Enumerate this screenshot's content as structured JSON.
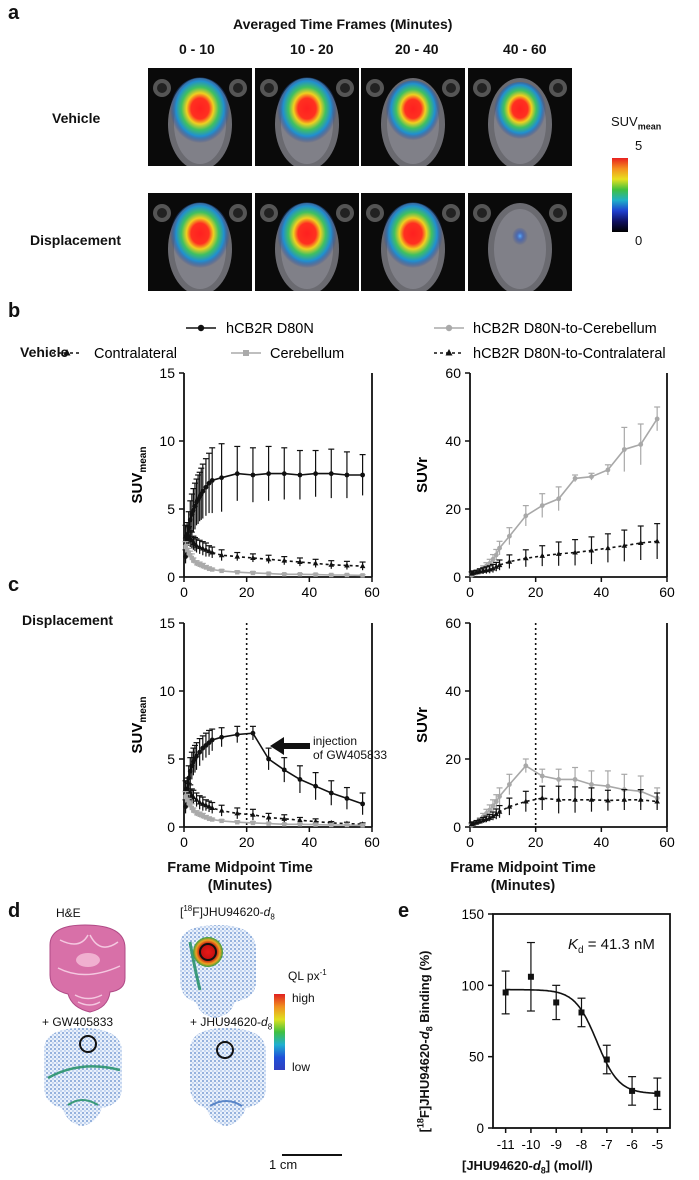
{
  "panel_a": {
    "letter": "a",
    "header": "Averaged Time Frames (Minutes)",
    "frames": [
      "0 - 10",
      "10 - 20",
      "20 - 40",
      "40 - 60"
    ],
    "rows": [
      "Vehicle",
      "Displacement"
    ],
    "colorbar": {
      "title": "SUV",
      "title_sub": "mean",
      "max": "5",
      "min": "0"
    },
    "hot_intensity": {
      "Vehicle": [
        1.0,
        1.0,
        0.9,
        0.85
      ],
      "Displacement": [
        1.0,
        1.0,
        1.0,
        0.15
      ]
    }
  },
  "panel_b": {
    "letter": "b",
    "row_label": "Vehicle"
  },
  "panel_c": {
    "letter": "c",
    "row_label": "Displacement",
    "annotation_line1": "injection",
    "annotation_line2": "of GW405833"
  },
  "legend": {
    "hcb2r": "hCB2R D80N",
    "contralateral": "Contralateral",
    "cerebellum": "Cerebellum",
    "ratio_cerebellum": "hCB2R D80N-to-Cerebellum",
    "ratio_contralateral": "hCB2R D80N-to-Contralateral"
  },
  "axes_bc": {
    "xlabel_line1": "Frame Midpoint Time",
    "xlabel_line2": "(Minutes)",
    "ylabel_suv": "SUV",
    "ylabel_suv_sub": "mean",
    "ylabel_suvr": "SUVr",
    "x_ticks": [
      "0",
      "20",
      "40",
      "60"
    ],
    "y_ticks_suv": [
      "0",
      "5",
      "10",
      "15"
    ],
    "y_ticks_suvr": [
      "0",
      "20",
      "40",
      "60"
    ]
  },
  "panel_d": {
    "letter": "d",
    "he_label": "H&E",
    "tracer_label": "[",
    "tracer_sup": "18",
    "tracer_rest": "F]JHU94620-",
    "tracer_d": "d",
    "tracer_d_sub": "8",
    "gw_label": "+ GW405833",
    "jhu_label": "+ JHU94620-",
    "jhu_d": "d",
    "jhu_d_sub": "8",
    "ql_label": "QL px",
    "ql_sup": "-1",
    "high": "high",
    "low": "low",
    "scale": "1 cm"
  },
  "panel_e": {
    "letter": "e",
    "kd": "K",
    "kd_sub": "d",
    "kd_value": " = 41.3 nM",
    "ylabel_pre": "[",
    "ylabel_sup": "18",
    "ylabel_mid": "F]JHU94620-",
    "ylabel_d": "d",
    "ylabel_d_sub": "8",
    "ylabel_post": " Binding (%)",
    "xlabel_pre": "[JHU94620-",
    "xlabel_d": "d",
    "xlabel_d_sub": "8",
    "xlabel_post": "] (mol/l)",
    "x_ticks": [
      "-11",
      "-10",
      "-9",
      "-8",
      "-7",
      "-6",
      "-5"
    ],
    "y_ticks": [
      "0",
      "50",
      "100",
      "150"
    ]
  },
  "chart_data": [
    {
      "id": "b-left",
      "type": "line",
      "xlim": [
        0,
        60
      ],
      "ylim": [
        0,
        15
      ],
      "series": [
        {
          "name": "hCB2R D80N",
          "color": "#111111",
          "dash": "",
          "marker": "circle",
          "x": [
            0.5,
            1,
            1.5,
            2,
            2.5,
            3,
            3.5,
            4,
            4.5,
            5,
            5.5,
            6,
            7,
            8,
            9,
            12,
            17,
            22,
            27,
            32,
            37,
            42,
            47,
            52,
            57
          ],
          "y": [
            1.5,
            2.8,
            3.6,
            4.2,
            4.6,
            4.9,
            5.2,
            5.5,
            5.7,
            5.9,
            6.1,
            6.3,
            6.6,
            6.9,
            7.1,
            7.3,
            7.6,
            7.5,
            7.6,
            7.6,
            7.5,
            7.6,
            7.6,
            7.5,
            7.5
          ],
          "err": [
            0.5,
            1.0,
            1.2,
            1.4,
            1.5,
            1.6,
            1.7,
            1.7,
            1.8,
            1.8,
            1.9,
            2.0,
            2.1,
            2.2,
            2.4,
            2.5,
            2.0,
            2.0,
            2.0,
            1.9,
            1.8,
            1.7,
            1.8,
            1.7,
            1.5
          ]
        },
        {
          "x": [
            0.5,
            1,
            1.5,
            2,
            2.5,
            3,
            3.5,
            4,
            5,
            6,
            7,
            8,
            9,
            12,
            17,
            22,
            27,
            32,
            37,
            42,
            47,
            52,
            57
          ],
          "y": [
            3.0,
            3.2,
            3.0,
            2.8,
            2.7,
            2.5,
            2.4,
            2.3,
            2.2,
            2.1,
            2.0,
            1.9,
            1.8,
            1.6,
            1.5,
            1.4,
            1.3,
            1.2,
            1.1,
            1.0,
            0.9,
            0.85,
            0.8
          ],
          "err": [
            0.8,
            0.8,
            0.7,
            0.6,
            0.6,
            0.5,
            0.5,
            0.5,
            0.5,
            0.5,
            0.5,
            0.4,
            0.4,
            0.4,
            0.3,
            0.3,
            0.3,
            0.3,
            0.3,
            0.3,
            0.3,
            0.3,
            0.3
          ]
        },
        {
          "x": [
            0.5,
            1,
            1.5,
            2,
            2.5,
            3,
            4,
            5,
            6,
            7,
            8,
            9,
            12,
            17,
            22,
            27,
            32,
            37,
            42,
            47,
            52,
            57
          ],
          "y": [
            2.2,
            2.0,
            1.8,
            1.6,
            1.4,
            1.2,
            1.0,
            0.9,
            0.8,
            0.7,
            0.6,
            0.55,
            0.45,
            0.35,
            0.3,
            0.25,
            0.2,
            0.2,
            0.18,
            0.15,
            0.15,
            0.12
          ],
          "err": [
            0.4,
            0.4,
            0.3,
            0.3,
            0.3,
            0.2,
            0.2,
            0.2,
            0.2,
            0.15,
            0.15,
            0.1,
            0.1,
            0.1,
            0.1,
            0.05,
            0.05,
            0.05,
            0.05,
            0.05,
            0.05,
            0.05
          ]
        }
      ]
    },
    {
      "id": "b-right",
      "type": "line",
      "xlim": [
        0,
        60
      ],
      "ylim": [
        0,
        60
      ],
      "series": [
        {
          "name": "hCB2R D80N-to-Cerebellum",
          "x": [
            0.5,
            1,
            2,
            3,
            4,
            5,
            6,
            7,
            8,
            9,
            12,
            17,
            22,
            27,
            32,
            37,
            42,
            47,
            52,
            57
          ],
          "y": [
            0.5,
            0.8,
            1.2,
            1.8,
            2.5,
            3.2,
            4.0,
            5.2,
            6.5,
            8.5,
            12,
            18,
            21,
            23,
            29,
            29.5,
            31.5,
            37.5,
            39,
            46.5
          ],
          "err": [
            0.3,
            0.4,
            0.5,
            0.6,
            0.8,
            1.0,
            1.2,
            1.4,
            1.6,
            2.0,
            2.5,
            3,
            3.5,
            3.5,
            1.0,
            1.0,
            1.5,
            6.5,
            6,
            3.5
          ]
        },
        {
          "name": "hCB2R D80N-to-Contralateral",
          "x": [
            0.5,
            1,
            2,
            3,
            4,
            5,
            6,
            7,
            8,
            9,
            12,
            17,
            22,
            27,
            32,
            37,
            42,
            47,
            52,
            57
          ],
          "y": [
            1.0,
            1.2,
            1.4,
            1.6,
            1.8,
            2.0,
            2.2,
            2.5,
            3.0,
            3.5,
            4.5,
            5.5,
            6.2,
            6.8,
            7.2,
            7.8,
            8.5,
            9.2,
            10,
            10.5
          ],
          "err": [
            0.5,
            0.6,
            0.6,
            0.8,
            0.9,
            1.0,
            1.1,
            1.2,
            1.3,
            1.5,
            2.0,
            2.5,
            3.0,
            3.5,
            3.8,
            4.0,
            4.2,
            4.6,
            5.0,
            5.2
          ]
        }
      ]
    },
    {
      "id": "c-left",
      "type": "line",
      "xlim": [
        0,
        60
      ],
      "ylim": [
        0,
        15
      ],
      "series": [
        {
          "name": "hCB2R D80N",
          "x": [
            0.5,
            1,
            1.5,
            2,
            2.5,
            3,
            3.5,
            4,
            5,
            6,
            7,
            8,
            9,
            12,
            17,
            22,
            27,
            32,
            37,
            42,
            47,
            52,
            57
          ],
          "y": [
            1.5,
            2.8,
            3.6,
            4.1,
            4.5,
            4.8,
            5.0,
            5.2,
            5.5,
            5.8,
            6.0,
            6.2,
            6.4,
            6.6,
            6.8,
            6.9,
            5.0,
            4.2,
            3.5,
            3.0,
            2.5,
            2.1,
            1.7
          ],
          "err": [
            0.5,
            0.8,
            0.9,
            1.0,
            1.0,
            1.0,
            1.0,
            1.0,
            1.0,
            0.9,
            0.9,
            0.9,
            0.8,
            0.7,
            0.6,
            0.5,
            0.8,
            0.9,
            1.0,
            1.0,
            0.9,
            0.8,
            0.8
          ]
        },
        {
          "x": [
            0.5,
            1,
            1.5,
            2,
            2.5,
            3,
            4,
            5,
            6,
            7,
            8,
            9,
            12,
            17,
            22,
            27,
            32,
            37,
            42,
            47,
            52,
            57
          ],
          "y": [
            2.8,
            2.7,
            2.6,
            2.5,
            2.3,
            2.2,
            2.0,
            1.8,
            1.7,
            1.6,
            1.5,
            1.4,
            1.2,
            1.0,
            0.9,
            0.7,
            0.6,
            0.5,
            0.4,
            0.3,
            0.25,
            0.2
          ],
          "err": [
            0.6,
            0.6,
            0.6,
            0.6,
            0.5,
            0.5,
            0.5,
            0.5,
            0.5,
            0.4,
            0.4,
            0.4,
            0.4,
            0.4,
            0.4,
            0.3,
            0.3,
            0.2,
            0.2,
            0.1,
            0.1,
            0.1
          ]
        },
        {
          "x": [
            0.5,
            1,
            1.5,
            2,
            2.5,
            3,
            4,
            5,
            6,
            7,
            8,
            9,
            12,
            17,
            22,
            27,
            32,
            37,
            42,
            47,
            52,
            57
          ],
          "y": [
            2.2,
            2.0,
            1.8,
            1.6,
            1.4,
            1.2,
            1.0,
            0.9,
            0.8,
            0.7,
            0.6,
            0.55,
            0.45,
            0.35,
            0.3,
            0.25,
            0.2,
            0.2,
            0.18,
            0.15,
            0.15,
            0.12
          ],
          "err": [
            0.4,
            0.4,
            0.3,
            0.3,
            0.3,
            0.2,
            0.2,
            0.2,
            0.2,
            0.15,
            0.15,
            0.1,
            0.1,
            0.1,
            0.1,
            0.05,
            0.05,
            0.05,
            0.05,
            0.05,
            0.05,
            0.05
          ]
        }
      ],
      "vline_x": 20
    },
    {
      "id": "c-right",
      "type": "line",
      "xlim": [
        0,
        60
      ],
      "ylim": [
        0,
        60
      ],
      "series": [
        {
          "name": "hCB2R D80N-to-Cerebellum",
          "x": [
            0.5,
            1,
            2,
            3,
            4,
            5,
            6,
            7,
            8,
            9,
            12,
            17,
            22,
            27,
            32,
            37,
            42,
            47,
            52,
            57
          ],
          "y": [
            0.5,
            0.8,
            1.2,
            2.0,
            3.0,
            4.0,
            5.0,
            6.2,
            7.5,
            9.0,
            12.5,
            18,
            15,
            14,
            14,
            12.5,
            12,
            11,
            10.5,
            8.5
          ],
          "err": [
            0.3,
            0.4,
            0.5,
            0.7,
            1.0,
            1.2,
            1.5,
            1.8,
            2.0,
            2.5,
            3.0,
            2.0,
            2.0,
            3.0,
            3.5,
            4.0,
            4.5,
            4.5,
            4.5,
            3.0
          ]
        },
        {
          "name": "hCB2R D80N-to-Contralateral",
          "x": [
            0.5,
            1,
            2,
            3,
            4,
            5,
            6,
            7,
            8,
            9,
            12,
            17,
            22,
            27,
            32,
            37,
            42,
            47,
            52,
            57
          ],
          "y": [
            0.8,
            1.0,
            1.3,
            1.6,
            2.0,
            2.3,
            2.7,
            3.2,
            3.8,
            4.5,
            6.0,
            7.5,
            8.5,
            8.0,
            8.0,
            8.0,
            7.8,
            8.0,
            8.0,
            7.5
          ],
          "err": [
            0.4,
            0.5,
            0.6,
            0.7,
            0.8,
            0.9,
            1.0,
            1.2,
            1.5,
            1.8,
            2.5,
            3.0,
            3.5,
            4.0,
            3.8,
            3.5,
            3.0,
            3.0,
            3.0,
            2.5
          ]
        }
      ],
      "vline_x": 20
    },
    {
      "id": "e",
      "type": "scatter",
      "xlim": [
        -11.5,
        -4.5
      ],
      "ylim": [
        0,
        150
      ],
      "x": [
        -11,
        -10,
        -9,
        -8,
        -7,
        -6,
        -5
      ],
      "y": [
        95,
        106,
        88,
        81,
        48,
        26,
        24
      ],
      "err": [
        15,
        24,
        12,
        10,
        10,
        10,
        11
      ],
      "fit": {
        "top": 97,
        "bottom": 24,
        "logEC50": -7.39,
        "hill": 1.0
      }
    }
  ]
}
